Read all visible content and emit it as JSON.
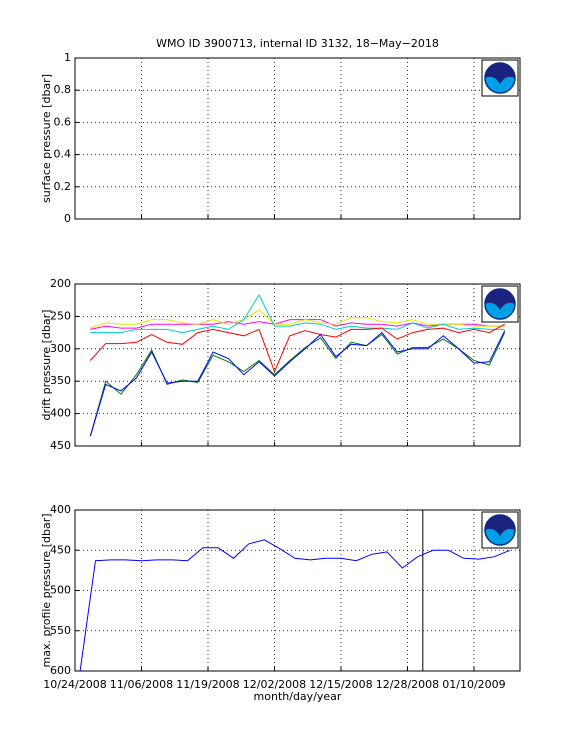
{
  "chart_data": [
    {
      "type": "line",
      "title": "WMO ID 3900713, internal ID 3132, 18−May−2018",
      "y_label": "surface pressure [dbar]",
      "ylim": [
        0,
        1
      ],
      "yticks": [
        0,
        0.2,
        0.4,
        0.6,
        0.8,
        1
      ],
      "grid": true
    },
    {
      "type": "line",
      "y_label": "drift pressure [dbar]",
      "ylim": [
        450,
        200
      ],
      "yticks": [
        450,
        400,
        350,
        300,
        250,
        200
      ],
      "grid": true,
      "x": [
        "10/27/2008",
        "10/30/2008",
        "11/02/2008",
        "11/05/2008",
        "11/08/2008",
        "11/11/2008",
        "11/14/2008",
        "11/17/2008",
        "11/20/2008",
        "11/23/2008",
        "11/26/2008",
        "11/29/2008",
        "12/02/2008",
        "12/05/2008",
        "12/08/2008",
        "12/11/2008",
        "12/14/2008",
        "12/17/2008",
        "12/20/2008",
        "12/23/2008",
        "12/26/2008",
        "12/29/2008",
        "01/01/2009",
        "01/04/2009",
        "01/07/2009",
        "01/10/2009",
        "01/13/2009",
        "01/16/2009"
      ],
      "series": [
        {
          "color": "#ff00ff",
          "values": [
            270,
            265,
            268,
            268,
            262,
            262,
            262,
            262,
            262,
            258,
            262,
            258,
            262,
            255,
            255,
            255,
            265,
            260,
            262,
            262,
            265,
            260,
            265,
            262,
            262,
            262,
            265,
            265
          ]
        },
        {
          "color": "#e6e600",
          "values": [
            268,
            260,
            262,
            262,
            255,
            255,
            260,
            262,
            255,
            262,
            255,
            240,
            262,
            262,
            255,
            260,
            262,
            252,
            252,
            258,
            260,
            255,
            262,
            262,
            262,
            265,
            265,
            265
          ]
        },
        {
          "color": "#00cccc",
          "values": [
            275,
            275,
            275,
            270,
            270,
            270,
            275,
            270,
            265,
            270,
            255,
            217,
            265,
            265,
            260,
            262,
            270,
            265,
            268,
            268,
            270,
            260,
            268,
            262,
            270,
            268,
            270,
            270
          ]
        },
        {
          "color": "#ff0000",
          "values": [
            318,
            292,
            292,
            290,
            278,
            290,
            293,
            275,
            270,
            275,
            280,
            270,
            335,
            280,
            272,
            278,
            282,
            270,
            270,
            268,
            285,
            275,
            270,
            268,
            275,
            270,
            275,
            262
          ]
        },
        {
          "color": "#008000",
          "values": [
            435,
            350,
            370,
            340,
            302,
            355,
            348,
            352,
            310,
            320,
            335,
            318,
            340,
            318,
            298,
            283,
            315,
            290,
            295,
            278,
            308,
            298,
            298,
            285,
            300,
            318,
            325,
            275
          ]
        },
        {
          "color": "#0000ff",
          "values": [
            435,
            355,
            365,
            345,
            305,
            353,
            350,
            350,
            305,
            315,
            340,
            320,
            342,
            320,
            300,
            278,
            312,
            293,
            295,
            275,
            305,
            300,
            300,
            280,
            300,
            322,
            320,
            272
          ]
        }
      ]
    },
    {
      "type": "line",
      "y_label": "max. profile pressure [dbar]",
      "x_label": "month/day/year",
      "ylim": [
        600,
        400
      ],
      "yticks": [
        600,
        550,
        500,
        450,
        400
      ],
      "grid": true,
      "xlim": [
        "10/24/2008",
        "01/19/2009"
      ],
      "xticks": [
        "10/24/2008",
        "11/06/2008",
        "11/19/2008",
        "12/02/2008",
        "12/15/2008",
        "12/28/2008",
        "01/10/2009"
      ],
      "vline": "12/31/2008",
      "x": [
        "10/25/2008",
        "10/28/2008",
        "10/31/2008",
        "11/03/2008",
        "11/06/2008",
        "11/09/2008",
        "11/12/2008",
        "11/15/2008",
        "11/18/2008",
        "11/21/2008",
        "11/24/2008",
        "11/27/2008",
        "11/30/2008",
        "12/03/2008",
        "12/06/2008",
        "12/09/2008",
        "12/12/2008",
        "12/15/2008",
        "12/18/2008",
        "12/21/2008",
        "12/24/2008",
        "12/27/2008",
        "12/30/2008",
        "01/02/2009",
        "01/05/2009",
        "01/08/2009",
        "01/11/2009",
        "01/14/2009",
        "01/17/2009"
      ],
      "series": [
        {
          "color": "#0000ff",
          "values": [
            600,
            463,
            462,
            462,
            463,
            462,
            462,
            463,
            447,
            447,
            460,
            442,
            437,
            448,
            460,
            462,
            460,
            460,
            463,
            455,
            452,
            472,
            458,
            450,
            450,
            460,
            461,
            458,
            450
          ]
        }
      ]
    }
  ]
}
